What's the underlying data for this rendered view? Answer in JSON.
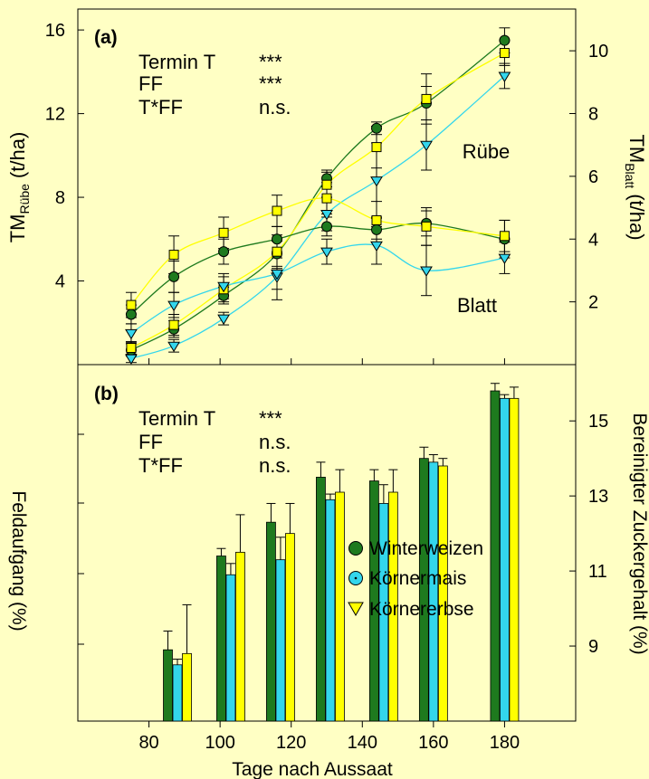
{
  "colors": {
    "background": "#ffffc4",
    "winterweizen": "#1e7a1e",
    "koernermais": "#33d6ec",
    "koernererbse": "#ffff00"
  },
  "chart_data": [
    {
      "type": "scatter",
      "panel_label": "(a)",
      "x_range": [
        60,
        200
      ],
      "y_left": {
        "label_main": "TM",
        "label_sub": "Rübe",
        "label_unit": "(t/ha)",
        "range": [
          0,
          17
        ],
        "ticks": [
          4,
          8,
          12,
          16
        ]
      },
      "y_right": {
        "label_main": "TM",
        "label_sub": "Blatt",
        "label_unit": "(t/ha)",
        "range": [
          0,
          11.33
        ],
        "ticks": [
          2,
          4,
          6,
          8,
          10
        ]
      },
      "stats": [
        {
          "factor": "Termin T",
          "sig": "***"
        },
        {
          "factor": "FF",
          "sig": "***"
        },
        {
          "factor": "T*FF",
          "sig": "n.s."
        }
      ],
      "annotations": {
        "ruebe": "Rübe",
        "blatt": "Blatt"
      },
      "ruebe_series": [
        {
          "key": "winterweizen",
          "marker": "circle",
          "x": [
            75,
            87,
            101,
            116,
            130,
            144,
            158,
            180
          ],
          "y": [
            0.7,
            1.7,
            3.3,
            5.3,
            8.9,
            11.3,
            12.5,
            15.5
          ],
          "err": [
            0.3,
            0.4,
            0.4,
            0.6,
            0.4,
            0.3,
            0.8,
            0.6
          ]
        },
        {
          "key": "koernermais",
          "marker": "triangle",
          "x": [
            75,
            87,
            101,
            116,
            130,
            144,
            158,
            180
          ],
          "y": [
            0.3,
            0.9,
            2.2,
            4.2,
            7.2,
            8.8,
            10.5,
            13.8
          ],
          "err": [
            0.2,
            0.3,
            0.3,
            1.1,
            0.8,
            1.8,
            1.2,
            0.6
          ]
        },
        {
          "key": "koernererbse",
          "marker": "square",
          "x": [
            75,
            87,
            101,
            116,
            130,
            144,
            158,
            180
          ],
          "y": [
            0.8,
            1.9,
            3.6,
            5.4,
            8.6,
            10.4,
            12.7,
            14.9
          ],
          "err": [
            0.3,
            0.5,
            0.6,
            0.8,
            0.6,
            1.0,
            1.2,
            0.6
          ]
        }
      ],
      "blatt_series": [
        {
          "key": "winterweizen",
          "marker": "circle",
          "x": [
            75,
            87,
            101,
            116,
            130,
            144,
            158,
            180
          ],
          "y": [
            1.6,
            2.8,
            3.6,
            4.0,
            4.4,
            4.3,
            4.5,
            4.0
          ],
          "err": [
            0.3,
            0.5,
            0.4,
            0.4,
            0.3,
            0.4,
            0.4,
            0.6
          ]
        },
        {
          "key": "koernermais",
          "marker": "triangle",
          "x": [
            75,
            87,
            101,
            116,
            130,
            144,
            158,
            180
          ],
          "y": [
            1.0,
            1.9,
            2.5,
            2.9,
            3.6,
            3.8,
            3.0,
            3.4
          ],
          "err": [
            0.3,
            0.4,
            0.4,
            0.5,
            0.4,
            0.6,
            0.8,
            0.5
          ]
        },
        {
          "key": "koernererbse",
          "marker": "square",
          "x": [
            75,
            87,
            101,
            116,
            130,
            144,
            158,
            180
          ],
          "y": [
            1.9,
            3.5,
            4.2,
            4.9,
            5.3,
            4.6,
            4.4,
            4.1
          ],
          "err": [
            0.4,
            0.6,
            0.5,
            0.5,
            0.5,
            0.6,
            0.6,
            0.5
          ]
        }
      ]
    },
    {
      "type": "bar",
      "panel_label": "(b)",
      "xlabel": "Tage nach Aussaat",
      "x_range": [
        60,
        200
      ],
      "x_ticks": [
        80,
        100,
        120,
        140,
        160,
        180
      ],
      "y_left": {
        "label": "Feldaufgang (%)",
        "range": [
          0,
          100
        ],
        "ticks": []
      },
      "y_right": {
        "label": "Bereinigter Zuckergehalt (%)",
        "range": [
          7,
          16.5
        ],
        "ticks": [
          9,
          11,
          13,
          15
        ]
      },
      "stats": [
        {
          "factor": "Termin T",
          "sig": "***"
        },
        {
          "factor": "FF",
          "sig": "n.s."
        },
        {
          "factor": "T*FF",
          "sig": "n.s."
        }
      ],
      "legend": [
        {
          "key": "winterweizen",
          "marker": "circle",
          "label": "Winterweizen"
        },
        {
          "key": "koernermais",
          "marker": "circle-dot",
          "label": "Körnermais"
        },
        {
          "key": "koernererbse",
          "marker": "triangle",
          "label": "Körnererbse"
        }
      ],
      "legend_placement": "center-right",
      "groups": [
        88,
        103,
        117,
        131,
        146,
        160,
        180
      ],
      "series": [
        {
          "key": "winterweizen",
          "values": [
            8.9,
            11.4,
            12.3,
            13.5,
            13.4,
            14.0,
            15.8
          ],
          "err": [
            0.5,
            0.2,
            0.5,
            0.4,
            0.3,
            0.3,
            0.2
          ]
        },
        {
          "key": "koernermais",
          "values": [
            8.5,
            10.9,
            11.3,
            12.9,
            12.8,
            13.9,
            15.6
          ],
          "err": [
            0.15,
            0.3,
            0.6,
            0.15,
            0.5,
            0.2,
            0.1
          ]
        },
        {
          "key": "koernererbse",
          "values": [
            8.8,
            11.5,
            12.0,
            13.1,
            13.1,
            13.8,
            15.6
          ],
          "err": [
            1.3,
            1.0,
            0.8,
            0.6,
            0.6,
            0.2,
            0.3
          ]
        }
      ]
    }
  ]
}
